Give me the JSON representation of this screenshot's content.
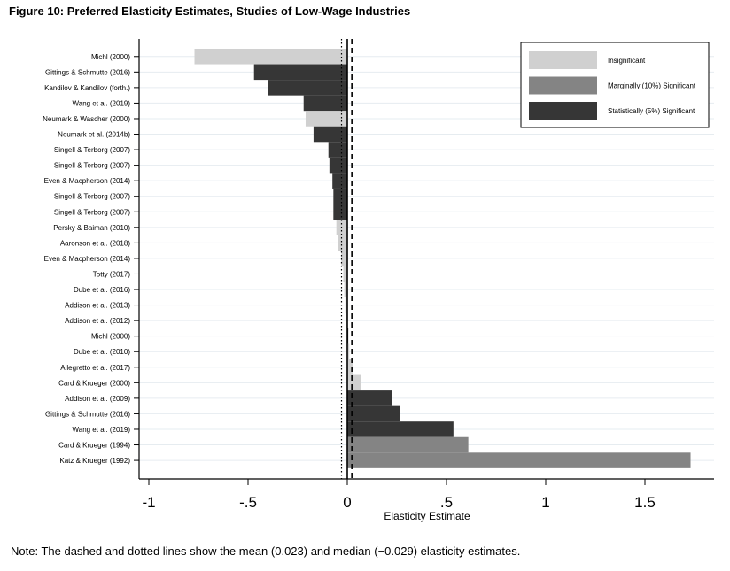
{
  "figure": {
    "title": "Figure 10: Preferred Elasticity Estimates, Studies of Low-Wage Industries",
    "note": "Note: The dashed and dotted lines show the mean (0.023) and median (−0.029) elasticity estimates."
  },
  "colors": {
    "insignificant": "#d0d0d0",
    "marginal": "#848484",
    "significant": "#363636",
    "grid": "#e6ecf0",
    "axis": "#000000"
  },
  "chart_data": {
    "type": "bar",
    "orientation": "horizontal",
    "title": "",
    "xlabel": "Elasticity Estimate",
    "ylabel": "",
    "xlim": [
      -1.05,
      1.85
    ],
    "xticks": [
      -1,
      -0.5,
      0,
      0.5,
      1,
      1.5
    ],
    "xtick_labels": [
      "-1",
      "-.5",
      "0",
      ".5",
      "1",
      "1.5"
    ],
    "grid": true,
    "legend_position": "top-right",
    "legend": [
      {
        "key": "insignificant",
        "label": "Insignificant"
      },
      {
        "key": "marginal",
        "label": "Marginally (10%) Significant"
      },
      {
        "key": "significant",
        "label": "Statistically (5%) Significant"
      }
    ],
    "reference_lines": {
      "mean": 0.023,
      "median": -0.029
    },
    "bars": [
      {
        "label": "Michl (2000)",
        "value": -0.77,
        "sig": "insignificant"
      },
      {
        "label": "Gittings & Schmutte (2016)",
        "value": -0.47,
        "sig": "significant"
      },
      {
        "label": "Kandilov & Kandilov (forth.)",
        "value": -0.4,
        "sig": "significant"
      },
      {
        "label": "Wang et al. (2019)",
        "value": -0.22,
        "sig": "significant"
      },
      {
        "label": "Neumark & Wascher (2000)",
        "value": -0.21,
        "sig": "insignificant"
      },
      {
        "label": "Neumark et al. (2014b)",
        "value": -0.17,
        "sig": "significant"
      },
      {
        "label": "Singell & Terborg (2007)",
        "value": -0.095,
        "sig": "significant"
      },
      {
        "label": "Singell & Terborg (2007)",
        "value": -0.09,
        "sig": "significant"
      },
      {
        "label": "Even & Macpherson (2014)",
        "value": -0.075,
        "sig": "significant"
      },
      {
        "label": "Singell & Terborg (2007)",
        "value": -0.07,
        "sig": "significant"
      },
      {
        "label": "Singell & Terborg (2007)",
        "value": -0.07,
        "sig": "significant"
      },
      {
        "label": "Persky & Baiman (2010)",
        "value": -0.055,
        "sig": "insignificant"
      },
      {
        "label": "Aaronson et al. (2018)",
        "value": -0.048,
        "sig": "insignificant"
      },
      {
        "label": "Even & Macpherson (2014)",
        "value": -0.03,
        "sig": "insignificant"
      },
      {
        "label": "Totty (2017)",
        "value": -0.02,
        "sig": "insignificant"
      },
      {
        "label": "Dube et al. (2016)",
        "value": -0.015,
        "sig": "insignificant"
      },
      {
        "label": "Addison et al. (2013)",
        "value": -0.01,
        "sig": "insignificant"
      },
      {
        "label": "Addison et al. (2012)",
        "value": -0.005,
        "sig": "insignificant"
      },
      {
        "label": "Michl (2000)",
        "value": 0.005,
        "sig": "significant"
      },
      {
        "label": "Dube et al. (2010)",
        "value": 0.01,
        "sig": "insignificant"
      },
      {
        "label": "Allegretto et al. (2017)",
        "value": 0.03,
        "sig": "insignificant"
      },
      {
        "label": "Card & Krueger (2000)",
        "value": 0.07,
        "sig": "insignificant"
      },
      {
        "label": "Addison et al. (2009)",
        "value": 0.225,
        "sig": "significant"
      },
      {
        "label": "Gittings & Schmutte (2016)",
        "value": 0.265,
        "sig": "significant"
      },
      {
        "label": "Wang et al. (2019)",
        "value": 0.535,
        "sig": "significant"
      },
      {
        "label": "Card & Krueger (1994)",
        "value": 0.61,
        "sig": "marginal"
      },
      {
        "label": "Katz & Krueger (1992)",
        "value": 1.73,
        "sig": "marginal"
      }
    ]
  }
}
